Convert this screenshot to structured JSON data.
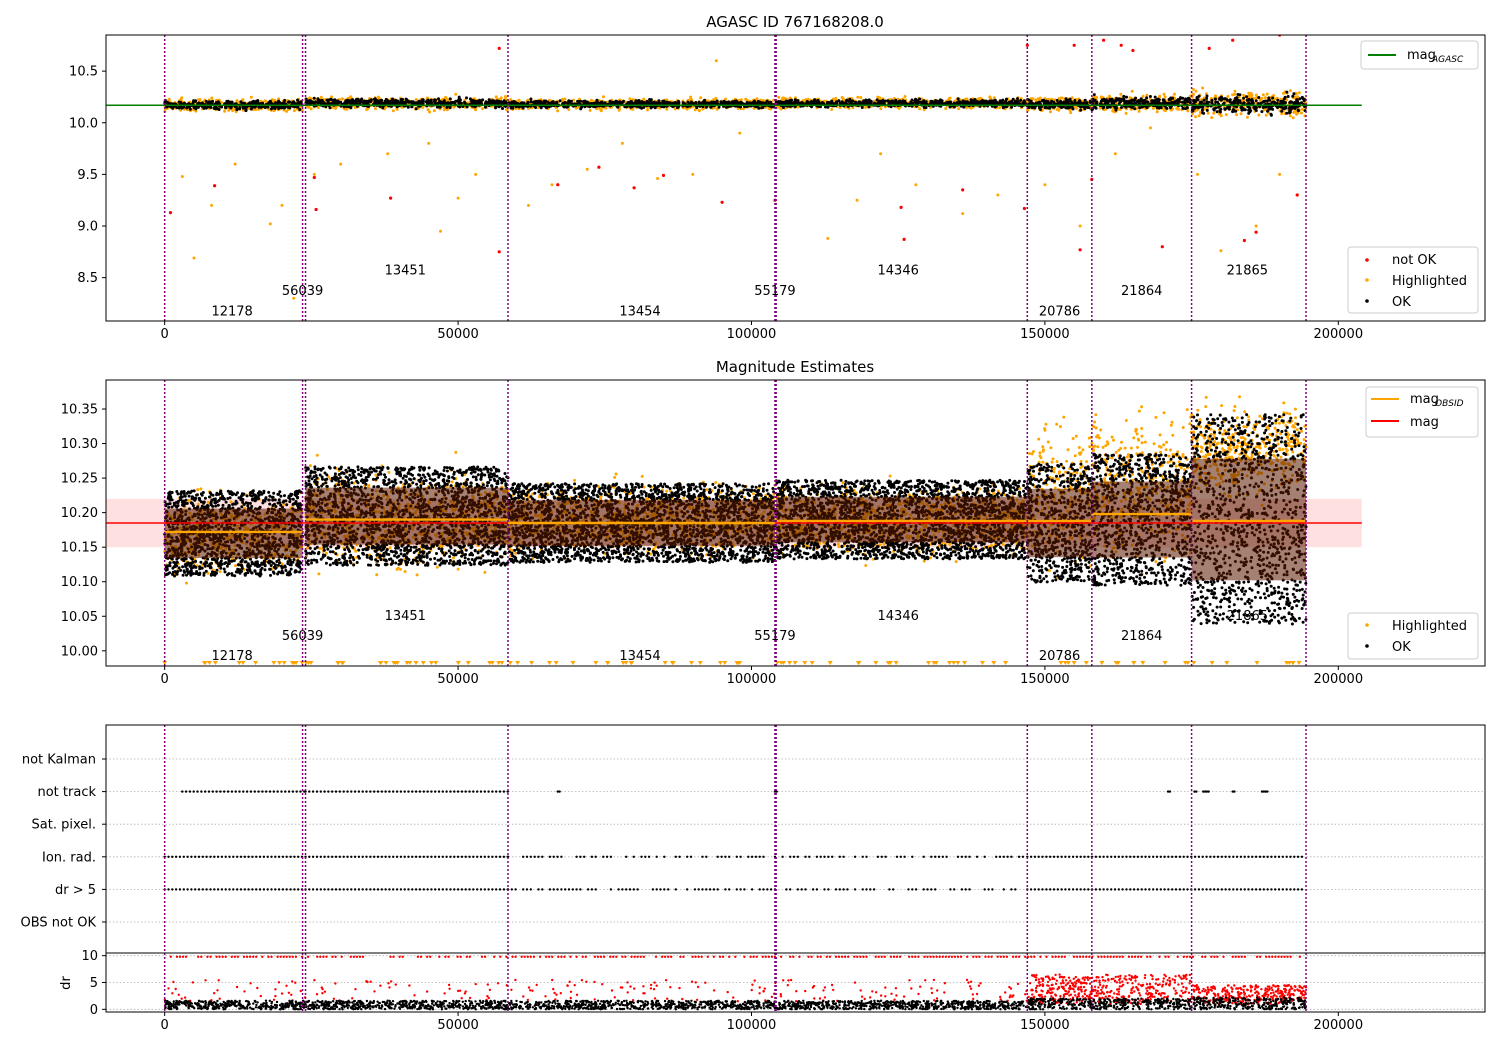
{
  "chart_data": [
    {
      "type": "scatter",
      "title": "AGASC ID 767168208.0",
      "xlim": [
        -10000,
        225000
      ],
      "ylim": [
        8.08,
        10.85
      ],
      "xticks": [
        0,
        50000,
        100000,
        150000,
        200000
      ],
      "xtick_labels": [
        "0",
        "50000",
        "100000",
        "150000",
        "200000"
      ],
      "yticks": [
        8.5,
        9.0,
        9.5,
        10.0,
        10.5
      ],
      "ytick_labels": [
        "8.5",
        "9.0",
        "9.5",
        "10.0",
        "10.5"
      ],
      "mag_agasc": 10.17,
      "mag_agasc_x_range": [
        -10000,
        204000
      ],
      "obs_boundaries": [
        0,
        23500,
        24000,
        58500,
        104000,
        104200,
        147000,
        158000,
        175000,
        194500
      ],
      "obsids": [
        {
          "label": "12178",
          "x": 11500,
          "y": 8.18
        },
        {
          "label": "56039",
          "x": 23500,
          "y": 8.38
        },
        {
          "label": "13451",
          "x": 41000,
          "y": 8.58
        },
        {
          "label": "13454",
          "x": 81000,
          "y": 8.18
        },
        {
          "label": "55179",
          "x": 104000,
          "y": 8.38
        },
        {
          "label": "14346",
          "x": 125000,
          "y": 8.58
        },
        {
          "label": "20786",
          "x": 152500,
          "y": 8.18
        },
        {
          "label": "21864",
          "x": 166500,
          "y": 8.38
        },
        {
          "label": "21865",
          "x": 184500,
          "y": 8.58
        }
      ],
      "ok_band": [
        {
          "x": [
            0,
            23500
          ],
          "center": 10.17,
          "halfwidth": 0.07
        },
        {
          "x": [
            24000,
            58500
          ],
          "center": 10.19,
          "halfwidth": 0.07
        },
        {
          "x": [
            58500,
            104000
          ],
          "center": 10.18,
          "halfwidth": 0.06
        },
        {
          "x": [
            104200,
            147000
          ],
          "center": 10.19,
          "halfwidth": 0.06
        },
        {
          "x": [
            147000,
            158000
          ],
          "center": 10.18,
          "halfwidth": 0.08
        },
        {
          "x": [
            158000,
            175000
          ],
          "center": 10.19,
          "halfwidth": 0.1
        },
        {
          "x": [
            175000,
            194500
          ],
          "center": 10.18,
          "halfwidth": 0.14
        }
      ],
      "highlighted_outliers": [
        [
          3000,
          9.48
        ],
        [
          5000,
          8.69
        ],
        [
          8000,
          9.2
        ],
        [
          12000,
          9.6
        ],
        [
          18000,
          9.02
        ],
        [
          20000,
          9.2
        ],
        [
          22000,
          8.3
        ],
        [
          25500,
          9.5
        ],
        [
          30000,
          9.6
        ],
        [
          38000,
          9.7
        ],
        [
          45000,
          9.8
        ],
        [
          47000,
          8.95
        ],
        [
          50000,
          9.27
        ],
        [
          53000,
          9.5
        ],
        [
          62000,
          9.2
        ],
        [
          66000,
          9.4
        ],
        [
          72000,
          9.55
        ],
        [
          78000,
          9.8
        ],
        [
          84000,
          9.46
        ],
        [
          90000,
          9.5
        ],
        [
          94000,
          10.6
        ],
        [
          98000,
          9.9
        ],
        [
          113000,
          8.88
        ],
        [
          118000,
          9.25
        ],
        [
          122000,
          9.7
        ],
        [
          128000,
          9.4
        ],
        [
          136000,
          9.12
        ],
        [
          142000,
          9.3
        ],
        [
          150000,
          9.4
        ],
        [
          156000,
          9.0
        ],
        [
          162000,
          9.7
        ],
        [
          168000,
          9.95
        ],
        [
          176000,
          9.5
        ],
        [
          180000,
          8.76
        ],
        [
          186000,
          9.0
        ],
        [
          190000,
          9.5
        ]
      ],
      "not_ok_points": [
        [
          1000,
          9.13
        ],
        [
          8500,
          9.39
        ],
        [
          25500,
          9.47
        ],
        [
          25800,
          9.16
        ],
        [
          38500,
          9.27
        ],
        [
          57000,
          10.72
        ],
        [
          57000,
          8.75
        ],
        [
          67000,
          9.4
        ],
        [
          74000,
          9.57
        ],
        [
          80000,
          9.37
        ],
        [
          85000,
          9.49
        ],
        [
          95000,
          9.23
        ],
        [
          104000,
          9.25
        ],
        [
          125500,
          9.18
        ],
        [
          126000,
          8.87
        ],
        [
          136000,
          9.35
        ],
        [
          146500,
          9.17
        ],
        [
          147000,
          10.75
        ],
        [
          155000,
          10.75
        ],
        [
          156000,
          8.77
        ],
        [
          158000,
          9.45
        ],
        [
          160000,
          10.8
        ],
        [
          163000,
          10.75
        ],
        [
          165000,
          10.7
        ],
        [
          170000,
          8.8
        ],
        [
          178000,
          10.72
        ],
        [
          182000,
          10.8
        ],
        [
          184000,
          8.86
        ],
        [
          186000,
          8.94
        ],
        [
          190000,
          10.85
        ],
        [
          193000,
          9.3
        ]
      ],
      "legend_top": [
        {
          "label": "mag",
          "sub": "AGASC",
          "color": "#008000"
        }
      ],
      "legend_bottom": [
        {
          "label": "not OK",
          "color": "#ff0000"
        },
        {
          "label": "Highlighted",
          "color": "#ffa500"
        },
        {
          "label": "OK",
          "color": "#000000"
        }
      ]
    },
    {
      "type": "scatter",
      "title": "Magnitude Estimates",
      "xlim": [
        -10000,
        225000
      ],
      "ylim": [
        9.978,
        10.392
      ],
      "xticks": [
        0,
        50000,
        100000,
        150000,
        200000
      ],
      "xtick_labels": [
        "0",
        "50000",
        "100000",
        "150000",
        "200000"
      ],
      "yticks": [
        10.0,
        10.05,
        10.1,
        10.15,
        10.2,
        10.25,
        10.3,
        10.35
      ],
      "ytick_labels": [
        "10.00",
        "10.05",
        "10.10",
        "10.15",
        "10.20",
        "10.25",
        "10.30",
        "10.35"
      ],
      "mag": 10.185,
      "mag_band": [
        10.15,
        10.22
      ],
      "mag_x_range": [
        -10000,
        204000
      ],
      "mag_obsid": [
        {
          "x": [
            0,
            23500
          ],
          "value": 10.172
        },
        {
          "x": [
            24000,
            58500
          ],
          "value": 10.19
        },
        {
          "x": [
            58500,
            104000
          ],
          "value": 10.185
        },
        {
          "x": [
            104200,
            147000
          ],
          "value": 10.188
        },
        {
          "x": [
            147000,
            158000
          ],
          "value": 10.188
        },
        {
          "x": [
            158000,
            175000
          ],
          "value": 10.198
        },
        {
          "x": [
            175000,
            194500
          ],
          "value": 10.188
        }
      ],
      "obsids": [
        {
          "label": "12178",
          "x": 11500,
          "y": 9.994
        },
        {
          "label": "56039",
          "x": 23500,
          "y": 10.023
        },
        {
          "label": "13451",
          "x": 41000,
          "y": 10.052
        },
        {
          "label": "13454",
          "x": 81000,
          "y": 9.994
        },
        {
          "label": "55179",
          "x": 104000,
          "y": 10.023
        },
        {
          "label": "14346",
          "x": 125000,
          "y": 10.052
        },
        {
          "label": "20786",
          "x": 152500,
          "y": 9.994
        },
        {
          "label": "21864",
          "x": 166500,
          "y": 10.023
        },
        {
          "label": "21865",
          "x": 184500,
          "y": 10.052
        }
      ],
      "ok_band": [
        {
          "x": [
            0,
            23500
          ],
          "center": 10.17,
          "halfwidth": 0.065
        },
        {
          "x": [
            24000,
            58500
          ],
          "center": 10.195,
          "halfwidth": 0.075
        },
        {
          "x": [
            58500,
            104000
          ],
          "center": 10.185,
          "halfwidth": 0.06
        },
        {
          "x": [
            104200,
            147000
          ],
          "center": 10.19,
          "halfwidth": 0.06
        },
        {
          "x": [
            147000,
            158000
          ],
          "center": 10.185,
          "halfwidth": 0.09
        },
        {
          "x": [
            158000,
            175000
          ],
          "center": 10.19,
          "halfwidth": 0.1
        },
        {
          "x": [
            175000,
            194500
          ],
          "center": 10.19,
          "halfwidth": 0.16
        }
      ],
      "highlighted_band": [
        {
          "x": [
            0,
            23500
          ],
          "center": 10.17,
          "halfwidth": 0.09
        },
        {
          "x": [
            24000,
            58500
          ],
          "center": 10.19,
          "halfwidth": 0.11
        },
        {
          "x": [
            58500,
            104000
          ],
          "center": 10.19,
          "halfwidth": 0.08
        },
        {
          "x": [
            104200,
            147000
          ],
          "center": 10.19,
          "halfwidth": 0.08
        },
        {
          "x": [
            147000,
            158000
          ],
          "center": 10.23,
          "halfwidth": 0.16
        },
        {
          "x": [
            158000,
            175000
          ],
          "center": 10.24,
          "halfwidth": 0.17
        },
        {
          "x": [
            175000,
            194500
          ],
          "center": 10.29,
          "halfwidth": 0.1
        }
      ],
      "clipped_low_count": 110,
      "legend_top": [
        {
          "label": "mag",
          "sub": "OBSID",
          "color": "#ffa500"
        },
        {
          "label": "mag",
          "sub": "",
          "color": "#ff0000"
        }
      ],
      "legend_bottom": [
        {
          "label": "Highlighted",
          "color": "#ffa500"
        },
        {
          "label": "OK",
          "color": "#000000"
        }
      ]
    },
    {
      "type": "scatter",
      "xlim": [
        -10000,
        225000
      ],
      "categories": [
        "not Kalman",
        "not track",
        "Sat. pixel.",
        "Ion. rad.",
        "dr > 5",
        "OBS not OK"
      ],
      "flags": {
        "not track": [
          [
            3000,
            24000
          ],
          [
            24000,
            58500
          ],
          [
            67000,
            67500
          ],
          [
            104000,
            104500
          ],
          [
            171000,
            171500
          ],
          [
            175500,
            176000
          ],
          [
            177000,
            178000
          ],
          [
            182000,
            182500
          ],
          [
            187000,
            188000
          ]
        ],
        "Ion. rad.": [
          [
            0,
            24000
          ],
          [
            24000,
            58500
          ],
          [
            58500,
            104000
          ],
          [
            104000,
            147000
          ],
          [
            147000,
            194000
          ]
        ],
        "dr > 5": [
          [
            0,
            24000
          ],
          [
            24000,
            58500
          ],
          [
            58500,
            104000
          ],
          [
            104000,
            147000
          ],
          [
            147000,
            194000
          ]
        ]
      }
    },
    {
      "type": "scatter",
      "xlim": [
        -10000,
        225000
      ],
      "ylabel": "dr",
      "ylim": [
        -0.5,
        10.5
      ],
      "yticks": [
        0,
        5,
        10
      ],
      "ytick_labels": [
        "0",
        "5",
        "10"
      ],
      "xticks": [
        0,
        50000,
        100000,
        150000,
        200000
      ],
      "xtick_labels": [
        "0",
        "50000",
        "100000",
        "150000",
        "200000"
      ],
      "clip_value": 9.8,
      "ok_level": [
        {
          "x": [
            0,
            147000
          ],
          "max": 1.6
        },
        {
          "x": [
            147000,
            175000
          ],
          "max": 2.0
        },
        {
          "x": [
            175000,
            194500
          ],
          "max": 2.2
        }
      ],
      "red_level": [
        {
          "x": [
            147000,
            175000
          ],
          "max": 6.5
        },
        {
          "x": [
            175000,
            194500
          ],
          "max": 4.5
        }
      ]
    }
  ],
  "colors": {
    "ok": "#000000",
    "highlighted": "#ffa500",
    "not_ok": "#ff0000",
    "agasc_line": "#008000",
    "mag_line": "#ff0000",
    "mag_obsid_line": "#ffa500",
    "boundary": "#800080"
  }
}
